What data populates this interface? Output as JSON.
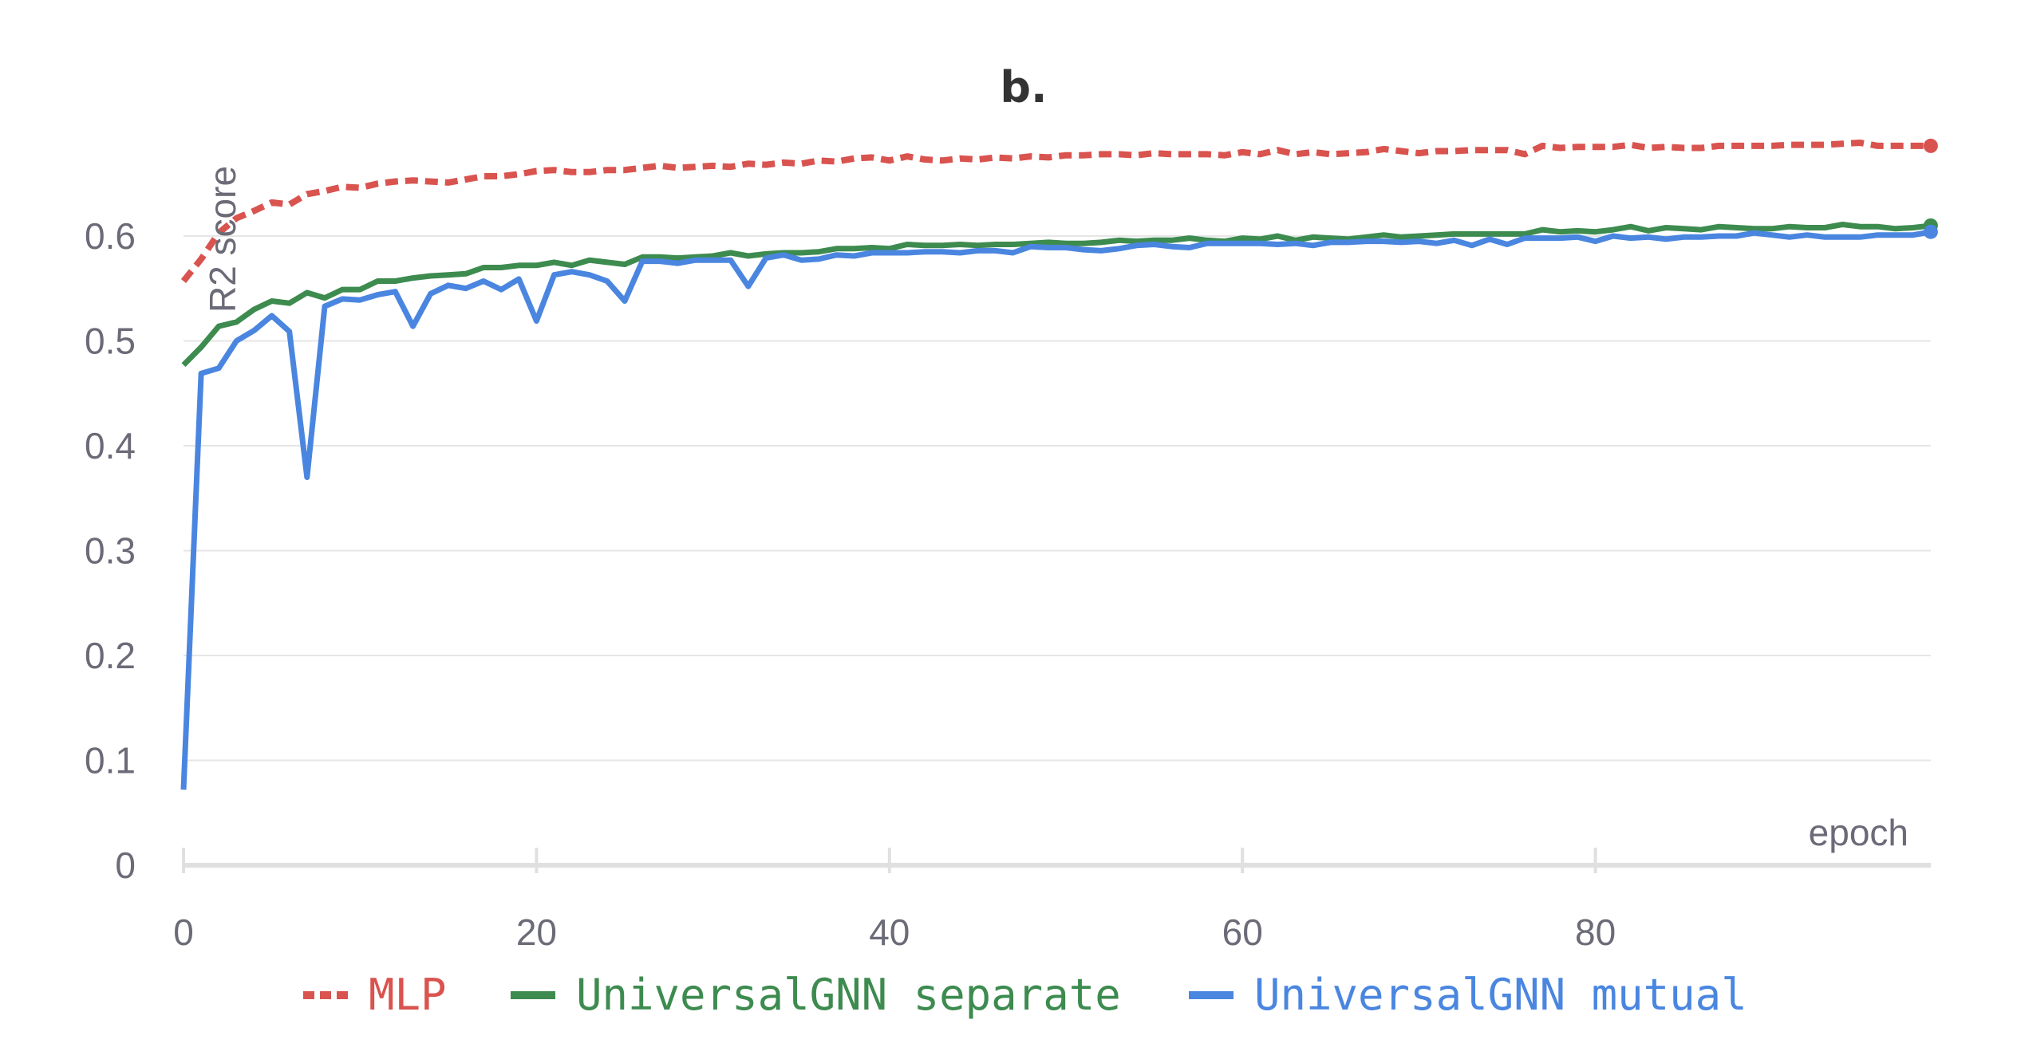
{
  "chart_data": {
    "type": "line",
    "title": "b.",
    "xlabel": "epoch",
    "ylabel": "R2 score",
    "xlim": [
      0,
      99
    ],
    "ylim": [
      0,
      0.7
    ],
    "xticks": [
      0,
      20,
      40,
      60,
      80
    ],
    "yticks": [
      0,
      0.1,
      0.2,
      0.3,
      0.4,
      0.5,
      0.6
    ],
    "ytick_labels": [
      "0",
      "0.1",
      "0.2",
      "0.3",
      "0.4",
      "0.5",
      "0.6"
    ],
    "grid": true,
    "legend_position": "bottom",
    "series": [
      {
        "name": "MLP",
        "color": "#d9534f",
        "style": "dashed",
        "x": [
          0,
          1,
          2,
          3,
          4,
          5,
          6,
          7,
          8,
          9,
          10,
          11,
          12,
          13,
          14,
          15,
          16,
          17,
          18,
          19,
          20,
          21,
          22,
          23,
          24,
          25,
          26,
          27,
          28,
          29,
          30,
          31,
          32,
          33,
          34,
          35,
          36,
          37,
          38,
          39,
          40,
          41,
          42,
          43,
          44,
          45,
          46,
          47,
          48,
          49,
          50,
          51,
          52,
          53,
          54,
          55,
          56,
          57,
          58,
          59,
          60,
          61,
          62,
          63,
          64,
          65,
          66,
          67,
          68,
          69,
          70,
          71,
          72,
          73,
          74,
          75,
          76,
          77,
          78,
          79,
          80,
          81,
          82,
          83,
          84,
          85,
          86,
          87,
          88,
          89,
          90,
          91,
          92,
          93,
          94,
          95,
          96,
          97,
          98,
          99
        ],
        "values": [
          0.557,
          0.578,
          0.603,
          0.617,
          0.624,
          0.632,
          0.63,
          0.64,
          0.643,
          0.647,
          0.646,
          0.65,
          0.652,
          0.653,
          0.652,
          0.651,
          0.654,
          0.657,
          0.657,
          0.659,
          0.662,
          0.663,
          0.661,
          0.661,
          0.663,
          0.663,
          0.665,
          0.667,
          0.665,
          0.666,
          0.667,
          0.666,
          0.669,
          0.668,
          0.67,
          0.669,
          0.672,
          0.671,
          0.674,
          0.675,
          0.672,
          0.676,
          0.673,
          0.672,
          0.674,
          0.673,
          0.675,
          0.674,
          0.676,
          0.675,
          0.677,
          0.677,
          0.678,
          0.678,
          0.677,
          0.679,
          0.678,
          0.678,
          0.678,
          0.677,
          0.68,
          0.678,
          0.682,
          0.678,
          0.68,
          0.678,
          0.679,
          0.68,
          0.683,
          0.681,
          0.679,
          0.681,
          0.681,
          0.682,
          0.682,
          0.682,
          0.678,
          0.686,
          0.684,
          0.685,
          0.685,
          0.685,
          0.687,
          0.684,
          0.685,
          0.684,
          0.684,
          0.686,
          0.686,
          0.686,
          0.686,
          0.687,
          0.687,
          0.687,
          0.688,
          0.689,
          0.686,
          0.686,
          0.686,
          0.686
        ]
      },
      {
        "name": "UniversalGNN separate",
        "color": "#3d8b4f",
        "style": "solid",
        "x": [
          0,
          1,
          2,
          3,
          4,
          5,
          6,
          7,
          8,
          9,
          10,
          11,
          12,
          13,
          14,
          15,
          16,
          17,
          18,
          19,
          20,
          21,
          22,
          23,
          24,
          25,
          26,
          27,
          28,
          29,
          30,
          31,
          32,
          33,
          34,
          35,
          36,
          37,
          38,
          39,
          40,
          41,
          42,
          43,
          44,
          45,
          46,
          47,
          48,
          49,
          50,
          51,
          52,
          53,
          54,
          55,
          56,
          57,
          58,
          59,
          60,
          61,
          62,
          63,
          64,
          65,
          66,
          67,
          68,
          69,
          70,
          71,
          72,
          73,
          74,
          75,
          76,
          77,
          78,
          79,
          80,
          81,
          82,
          83,
          84,
          85,
          86,
          87,
          88,
          89,
          90,
          91,
          92,
          93,
          94,
          95,
          96,
          97,
          98,
          99
        ],
        "values": [
          0.477,
          0.494,
          0.514,
          0.518,
          0.53,
          0.538,
          0.536,
          0.546,
          0.541,
          0.549,
          0.549,
          0.557,
          0.557,
          0.56,
          0.562,
          0.563,
          0.564,
          0.57,
          0.57,
          0.572,
          0.572,
          0.575,
          0.572,
          0.577,
          0.575,
          0.573,
          0.58,
          0.58,
          0.579,
          0.58,
          0.581,
          0.584,
          0.581,
          0.583,
          0.584,
          0.584,
          0.585,
          0.588,
          0.588,
          0.589,
          0.588,
          0.592,
          0.591,
          0.591,
          0.592,
          0.591,
          0.592,
          0.592,
          0.593,
          0.594,
          0.593,
          0.593,
          0.594,
          0.596,
          0.595,
          0.596,
          0.596,
          0.598,
          0.596,
          0.595,
          0.598,
          0.597,
          0.6,
          0.596,
          0.599,
          0.598,
          0.597,
          0.599,
          0.601,
          0.599,
          0.6,
          0.601,
          0.602,
          0.602,
          0.602,
          0.602,
          0.602,
          0.606,
          0.604,
          0.605,
          0.604,
          0.606,
          0.609,
          0.605,
          0.608,
          0.607,
          0.606,
          0.609,
          0.608,
          0.607,
          0.607,
          0.609,
          0.608,
          0.608,
          0.611,
          0.609,
          0.609,
          0.607,
          0.608,
          0.61
        ]
      },
      {
        "name": "UniversalGNN mutual",
        "color": "#4a86e0",
        "style": "solid",
        "x": [
          0,
          1,
          2,
          3,
          4,
          5,
          6,
          7,
          8,
          9,
          10,
          11,
          12,
          13,
          14,
          15,
          16,
          17,
          18,
          19,
          20,
          21,
          22,
          23,
          24,
          25,
          26,
          27,
          28,
          29,
          30,
          31,
          32,
          33,
          34,
          35,
          36,
          37,
          38,
          39,
          40,
          41,
          42,
          43,
          44,
          45,
          46,
          47,
          48,
          49,
          50,
          51,
          52,
          53,
          54,
          55,
          56,
          57,
          58,
          59,
          60,
          61,
          62,
          63,
          64,
          65,
          66,
          67,
          68,
          69,
          70,
          71,
          72,
          73,
          74,
          75,
          76,
          77,
          78,
          79,
          80,
          81,
          82,
          83,
          84,
          85,
          86,
          87,
          88,
          89,
          90,
          91,
          92,
          93,
          94,
          95,
          96,
          97,
          98,
          99
        ],
        "values": [
          0.072,
          0.469,
          0.474,
          0.5,
          0.51,
          0.524,
          0.509,
          0.37,
          0.533,
          0.54,
          0.539,
          0.544,
          0.547,
          0.514,
          0.545,
          0.553,
          0.55,
          0.557,
          0.549,
          0.559,
          0.519,
          0.563,
          0.566,
          0.563,
          0.557,
          0.538,
          0.576,
          0.576,
          0.574,
          0.577,
          0.577,
          0.577,
          0.552,
          0.579,
          0.582,
          0.577,
          0.578,
          0.582,
          0.581,
          0.584,
          0.584,
          0.584,
          0.585,
          0.585,
          0.584,
          0.586,
          0.586,
          0.584,
          0.59,
          0.589,
          0.589,
          0.587,
          0.586,
          0.588,
          0.591,
          0.592,
          0.59,
          0.589,
          0.593,
          0.593,
          0.593,
          0.593,
          0.592,
          0.593,
          0.591,
          0.594,
          0.594,
          0.595,
          0.595,
          0.594,
          0.595,
          0.593,
          0.596,
          0.591,
          0.597,
          0.592,
          0.598,
          0.598,
          0.598,
          0.599,
          0.595,
          0.6,
          0.598,
          0.599,
          0.597,
          0.599,
          0.599,
          0.6,
          0.6,
          0.603,
          0.601,
          0.599,
          0.601,
          0.599,
          0.599,
          0.599,
          0.601,
          0.601,
          0.601,
          0.604
        ]
      }
    ]
  }
}
